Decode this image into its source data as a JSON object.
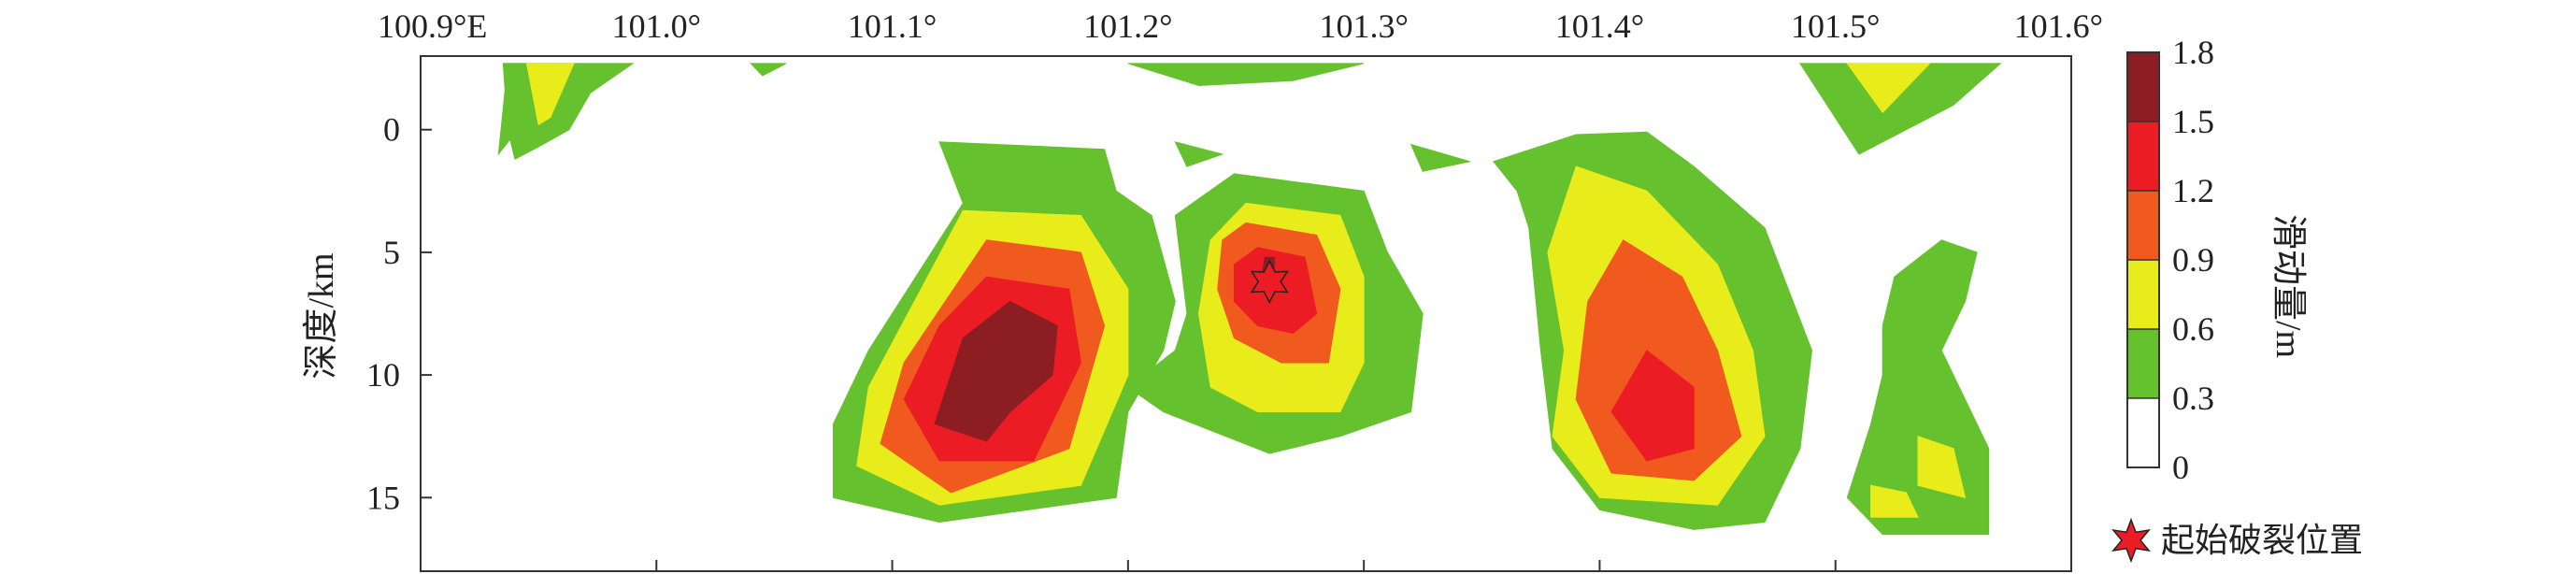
{
  "chart_data": {
    "type": "heatmap",
    "title": "",
    "x_ticks": [
      "100.9°E",
      "101.0°",
      "101.1°",
      "101.2°",
      "101.3°",
      "101.4°",
      "101.5°",
      "101.6°"
    ],
    "x_tick_values": [
      100.9,
      101.0,
      101.1,
      101.2,
      101.3,
      101.4,
      101.5,
      101.6
    ],
    "xlim": [
      100.9,
      101.6
    ],
    "ylabel": "深度/km",
    "y_ticks": [
      "0",
      "5",
      "10",
      "15"
    ],
    "y_tick_values": [
      0,
      5,
      10,
      15
    ],
    "ylim": [
      18,
      -3
    ],
    "colorbar": {
      "label": "滑动量/m",
      "levels": [
        0,
        0.3,
        0.6,
        0.9,
        1.2,
        1.5,
        1.8
      ],
      "level_labels": [
        "0",
        "0.3",
        "0.6",
        "0.9",
        "1.2",
        "1.5",
        "1.8"
      ],
      "colors": [
        "#ffffff",
        "#66c12e",
        "#e8ec1a",
        "#f05a1e",
        "#ec1c24",
        "#8c1d23"
      ]
    },
    "legend": {
      "epicenter_label": "起始破裂位置",
      "placement": "bottom-right"
    },
    "epicenter": {
      "lon": 101.26,
      "depth": 6.2
    },
    "patches": [
      {
        "level": 0.3,
        "points": [
          [
            100.937,
            -2.7
          ],
          [
            100.963,
            -2.7
          ],
          [
            100.933,
            1.0
          ],
          [
            100.937,
            -2.7
          ]
        ]
      },
      {
        "level": 0.3,
        "points": [
          [
            100.935,
            -2.7
          ],
          [
            100.99,
            -2.7
          ],
          [
            100.972,
            -1.5
          ],
          [
            100.963,
            0.0
          ],
          [
            100.95,
            0.7
          ],
          [
            100.94,
            1.2
          ],
          [
            100.937,
            0.0
          ],
          [
            100.935,
            -2.7
          ]
        ]
      },
      {
        "level": 0.6,
        "points": [
          [
            100.945,
            -2.7
          ],
          [
            100.965,
            -2.7
          ],
          [
            100.955,
            -0.5
          ],
          [
            100.95,
            -0.2
          ],
          [
            100.945,
            -2.7
          ]
        ]
      },
      {
        "level": 0.3,
        "points": [
          [
            101.04,
            -2.7
          ],
          [
            101.055,
            -2.7
          ],
          [
            101.045,
            -2.2
          ],
          [
            101.04,
            -2.7
          ]
        ]
      },
      {
        "level": 0.3,
        "points": [
          [
            101.2,
            -2.7
          ],
          [
            101.3,
            -2.7
          ],
          [
            101.27,
            -2.0
          ],
          [
            101.23,
            -1.8
          ],
          [
            101.2,
            -2.7
          ]
        ]
      },
      {
        "level": 0.3,
        "points": [
          [
            101.52,
            -2.7
          ],
          [
            101.57,
            -2.7
          ],
          [
            101.55,
            -1.0
          ],
          [
            101.51,
            1.0
          ],
          [
            101.485,
            -2.7
          ],
          [
            101.52,
            -2.7
          ]
        ]
      },
      {
        "level": 0.6,
        "points": [
          [
            101.52,
            -2.7
          ],
          [
            101.54,
            -2.7
          ],
          [
            101.52,
            -0.7
          ],
          [
            101.505,
            -2.7
          ],
          [
            101.52,
            -2.7
          ]
        ]
      },
      {
        "level": 0.3,
        "points": [
          [
            101.12,
            0.5
          ],
          [
            101.19,
            0.8
          ],
          [
            101.195,
            2.5
          ],
          [
            101.21,
            3.5
          ],
          [
            101.22,
            7.0
          ],
          [
            101.215,
            9.0
          ],
          [
            101.2,
            11.5
          ],
          [
            101.195,
            15.0
          ],
          [
            101.12,
            16.0
          ],
          [
            101.075,
            15.0
          ],
          [
            101.075,
            12.0
          ],
          [
            101.09,
            9.0
          ],
          [
            101.13,
            3.0
          ],
          [
            101.12,
            0.5
          ]
        ]
      },
      {
        "level": 0.6,
        "points": [
          [
            101.13,
            3.3
          ],
          [
            101.18,
            3.5
          ],
          [
            101.2,
            6.5
          ],
          [
            101.2,
            10.0
          ],
          [
            101.18,
            14.5
          ],
          [
            101.12,
            15.3
          ],
          [
            101.085,
            13.7
          ],
          [
            101.09,
            10.5
          ],
          [
            101.13,
            3.3
          ]
        ]
      },
      {
        "level": 0.9,
        "points": [
          [
            101.14,
            4.5
          ],
          [
            101.18,
            5.0
          ],
          [
            101.19,
            8.0
          ],
          [
            101.175,
            13.0
          ],
          [
            101.125,
            14.8
          ],
          [
            101.095,
            12.8
          ],
          [
            101.105,
            9.5
          ],
          [
            101.14,
            4.5
          ]
        ]
      },
      {
        "level": 1.2,
        "points": [
          [
            101.14,
            6.0
          ],
          [
            101.175,
            6.5
          ],
          [
            101.18,
            9.5
          ],
          [
            101.16,
            13.5
          ],
          [
            101.12,
            13.5
          ],
          [
            101.105,
            11.0
          ],
          [
            101.12,
            8.0
          ],
          [
            101.14,
            6.0
          ]
        ]
      },
      {
        "level": 1.5,
        "points": [
          [
            101.15,
            7.0
          ],
          [
            101.17,
            8.0
          ],
          [
            101.168,
            10.0
          ],
          [
            101.15,
            11.5
          ],
          [
            101.14,
            12.7
          ],
          [
            101.118,
            12.0
          ],
          [
            101.13,
            8.5
          ],
          [
            101.15,
            7.0
          ]
        ]
      },
      {
        "level": 0.3,
        "points": [
          [
            101.245,
            1.8
          ],
          [
            101.3,
            2.5
          ],
          [
            101.31,
            5.0
          ],
          [
            101.325,
            7.5
          ],
          [
            101.32,
            11.5
          ],
          [
            101.29,
            12.5
          ],
          [
            101.26,
            13.2
          ],
          [
            101.215,
            11.5
          ],
          [
            101.2,
            10.5
          ],
          [
            101.22,
            9.0
          ],
          [
            101.225,
            7.5
          ],
          [
            101.22,
            3.5
          ],
          [
            101.245,
            1.8
          ]
        ]
      },
      {
        "level": 0.6,
        "points": [
          [
            101.25,
            3.0
          ],
          [
            101.29,
            3.5
          ],
          [
            101.3,
            6.0
          ],
          [
            101.3,
            9.5
          ],
          [
            101.29,
            11.5
          ],
          [
            101.255,
            11.5
          ],
          [
            101.235,
            10.5
          ],
          [
            101.23,
            7.5
          ],
          [
            101.235,
            4.5
          ],
          [
            101.25,
            3.0
          ]
        ]
      },
      {
        "level": 0.9,
        "points": [
          [
            101.25,
            3.8
          ],
          [
            101.28,
            4.3
          ],
          [
            101.29,
            6.5
          ],
          [
            101.285,
            9.5
          ],
          [
            101.265,
            9.5
          ],
          [
            101.245,
            8.5
          ],
          [
            101.238,
            6.5
          ],
          [
            101.24,
            4.5
          ],
          [
            101.25,
            3.8
          ]
        ]
      },
      {
        "level": 1.2,
        "points": [
          [
            101.255,
            4.8
          ],
          [
            101.275,
            5.2
          ],
          [
            101.28,
            7.5
          ],
          [
            101.27,
            8.3
          ],
          [
            101.255,
            8.0
          ],
          [
            101.245,
            7.0
          ],
          [
            101.245,
            5.5
          ],
          [
            101.255,
            4.8
          ]
        ]
      },
      {
        "level": 1.5,
        "points": [
          [
            101.258,
            5.2
          ],
          [
            101.262,
            5.2
          ],
          [
            101.262,
            5.8
          ],
          [
            101.257,
            5.8
          ],
          [
            101.258,
            5.2
          ]
        ]
      },
      {
        "level": 0.3,
        "points": [
          [
            101.22,
            0.5
          ],
          [
            101.24,
            1.0
          ],
          [
            101.225,
            1.5
          ],
          [
            101.22,
            0.5
          ]
        ]
      },
      {
        "level": 0.3,
        "points": [
          [
            101.32,
            0.6
          ],
          [
            101.345,
            1.3
          ],
          [
            101.325,
            1.7
          ],
          [
            101.32,
            0.6
          ]
        ]
      },
      {
        "level": 0.3,
        "points": [
          [
            101.39,
            0.2
          ],
          [
            101.42,
            0.1
          ],
          [
            101.44,
            1.5
          ],
          [
            101.47,
            4.0
          ],
          [
            101.49,
            9.0
          ],
          [
            101.485,
            13.0
          ],
          [
            101.47,
            16.0
          ],
          [
            101.44,
            16.3
          ],
          [
            101.4,
            15.5
          ],
          [
            101.38,
            13.0
          ],
          [
            101.375,
            9.0
          ],
          [
            101.37,
            4.0
          ],
          [
            101.365,
            2.5
          ],
          [
            101.355,
            1.3
          ],
          [
            101.39,
            0.2
          ]
        ]
      },
      {
        "level": 0.6,
        "points": [
          [
            101.39,
            1.5
          ],
          [
            101.42,
            2.5
          ],
          [
            101.45,
            5.5
          ],
          [
            101.465,
            9.0
          ],
          [
            101.47,
            12.5
          ],
          [
            101.45,
            15.3
          ],
          [
            101.4,
            15.0
          ],
          [
            101.38,
            12.5
          ],
          [
            101.385,
            9.0
          ],
          [
            101.378,
            5.0
          ],
          [
            101.39,
            1.5
          ]
        ]
      },
      {
        "level": 0.9,
        "points": [
          [
            101.41,
            4.5
          ],
          [
            101.435,
            6.0
          ],
          [
            101.45,
            9.0
          ],
          [
            101.46,
            12.5
          ],
          [
            101.44,
            14.3
          ],
          [
            101.405,
            14.0
          ],
          [
            101.39,
            11.0
          ],
          [
            101.395,
            7.0
          ],
          [
            101.41,
            4.5
          ]
        ]
      },
      {
        "level": 1.2,
        "points": [
          [
            101.42,
            9.0
          ],
          [
            101.44,
            10.5
          ],
          [
            101.44,
            13.0
          ],
          [
            101.42,
            13.5
          ],
          [
            101.405,
            11.5
          ],
          [
            101.42,
            9.0
          ]
        ]
      },
      {
        "level": 0.3,
        "points": [
          [
            101.525,
            6.0
          ],
          [
            101.545,
            4.5
          ],
          [
            101.56,
            5.0
          ],
          [
            101.555,
            7.0
          ],
          [
            101.545,
            9.0
          ],
          [
            101.555,
            11.0
          ],
          [
            101.565,
            13.0
          ],
          [
            101.565,
            16.5
          ],
          [
            101.52,
            16.5
          ],
          [
            101.505,
            15.0
          ],
          [
            101.515,
            12.0
          ],
          [
            101.52,
            10.0
          ],
          [
            101.52,
            8.0
          ],
          [
            101.525,
            6.0
          ]
        ]
      },
      {
        "level": 0.6,
        "points": [
          [
            101.535,
            12.5
          ],
          [
            101.55,
            13.0
          ],
          [
            101.555,
            15.0
          ],
          [
            101.535,
            14.5
          ],
          [
            101.535,
            12.5
          ]
        ]
      },
      {
        "level": 0.6,
        "points": [
          [
            101.515,
            14.5
          ],
          [
            101.53,
            14.8
          ],
          [
            101.535,
            15.8
          ],
          [
            101.515,
            15.8
          ],
          [
            101.515,
            14.5
          ]
        ]
      }
    ]
  }
}
